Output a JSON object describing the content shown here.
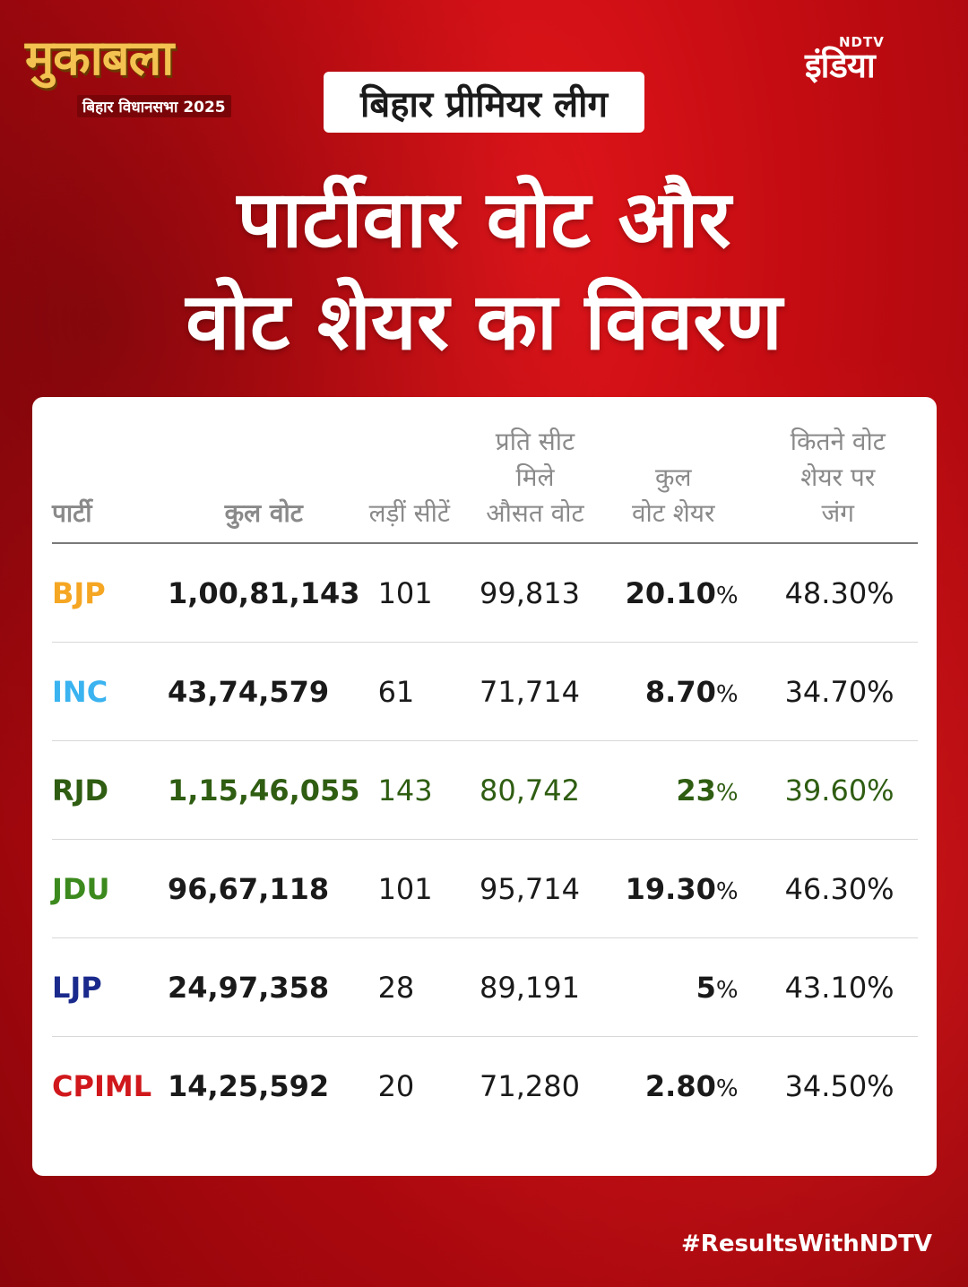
{
  "brand": {
    "logo_title": "मुकाबला",
    "logo_subtitle": "बिहार विधानसभा 2025",
    "channel_small": "NDTV",
    "channel_big": "इंडिया"
  },
  "tag": "बिहार प्रीमियर लीग",
  "headline": {
    "line1": "पार्टीवार वोट और",
    "line2": "वोट शेयर का विवरण"
  },
  "table": {
    "headers": {
      "party": "पार्टी",
      "total_votes": "कुल वोट",
      "seats_contested": "लड़ीं सीटें",
      "avg_votes_line1": "प्रति सीट",
      "avg_votes_line2": "मिले",
      "avg_votes_line3": "औसत वोट",
      "vote_share_line1": "कुल",
      "vote_share_line2": "वोट शेयर",
      "contest_share_line1": "कितने वोट",
      "contest_share_line2": "शेयर पर",
      "contest_share_line3": "जंग"
    },
    "rows": [
      {
        "party": "BJP",
        "total_votes": "1,00,81,143",
        "seats": "101",
        "avg_votes": "99,813",
        "share": "20.10",
        "contest_share": "48.30%"
      },
      {
        "party": "INC",
        "total_votes": "43,74,579",
        "seats": "61",
        "avg_votes": "71,714",
        "share": "8.70",
        "contest_share": "34.70%"
      },
      {
        "party": "RJD",
        "total_votes": "1,15,46,055",
        "seats": "143",
        "avg_votes": "80,742",
        "share": "23",
        "contest_share": "39.60%"
      },
      {
        "party": "JDU",
        "total_votes": "96,67,118",
        "seats": "101",
        "avg_votes": "95,714",
        "share": "19.30",
        "contest_share": "46.30%"
      },
      {
        "party": "LJP",
        "total_votes": "24,97,358",
        "seats": "28",
        "avg_votes": "89,191",
        "share": "5",
        "contest_share": "43.10%"
      },
      {
        "party": "CPIML",
        "total_votes": "14,25,592",
        "seats": "20",
        "avg_votes": "71,280",
        "share": "2.80",
        "contest_share": "34.50%"
      }
    ],
    "percent_sign": "%"
  },
  "colors": {
    "BJP": "#f5a623",
    "INC": "#3ab3f0",
    "RJD": "#2f5d12",
    "JDU": "#3c8a1e",
    "LJP": "#1a2a8c",
    "CPIML": "#d0181c",
    "rjd_row_text": "#2f5d12"
  },
  "hashtag": "#ResultsWithNDTV"
}
